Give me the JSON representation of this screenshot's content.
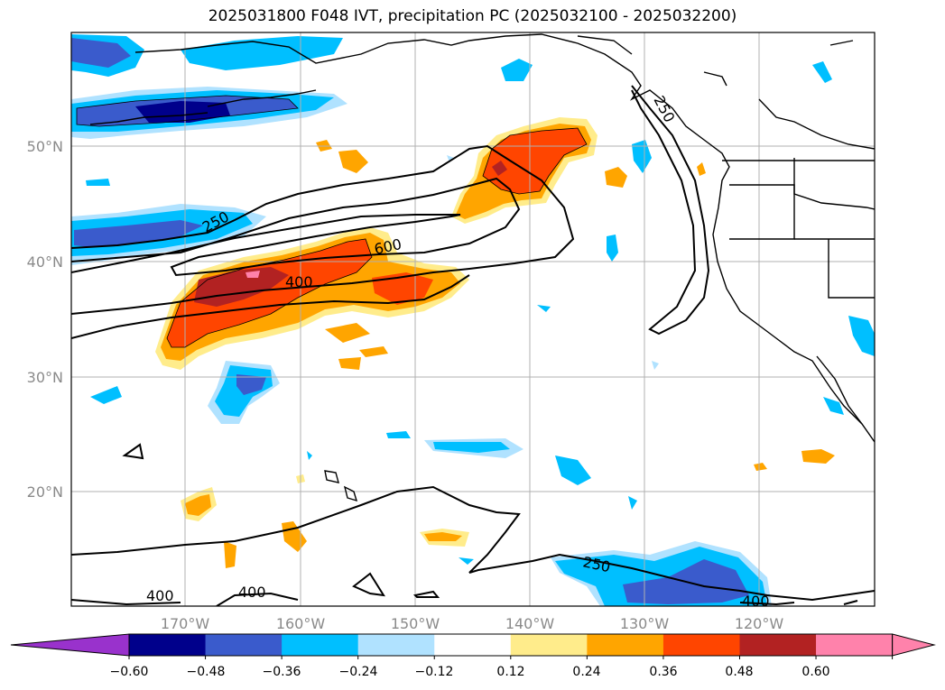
{
  "title": "2025031800 F048 IVT, precipitation PC (2025032100 - 2025032200)",
  "map": {
    "lat_labels": [
      "50°N",
      "40°N",
      "30°N",
      "20°N"
    ],
    "lon_labels": [
      "170°W",
      "160°W",
      "150°W",
      "140°W",
      "130°W",
      "120°W"
    ],
    "grid": true
  },
  "contours": {
    "ivt_levels": [
      250,
      400,
      600
    ],
    "labels": [
      "250",
      "400",
      "600",
      "250",
      "400",
      "400",
      "250",
      "400"
    ]
  },
  "colorbar": {
    "ticks": [
      "−0.60",
      "−0.48",
      "−0.36",
      "−0.24",
      "−0.12",
      "0.12",
      "0.24",
      "0.36",
      "0.48",
      "0.60"
    ],
    "colors": [
      "#9932cc",
      "#00008b",
      "#3a5bcc",
      "#00bfff",
      "#b0e2ff",
      "#ffffff",
      "#ffec8b",
      "#ffa500",
      "#ff4500",
      "#b22222",
      "#ff82ab",
      "#ff82ab"
    ],
    "extend": "both"
  }
}
